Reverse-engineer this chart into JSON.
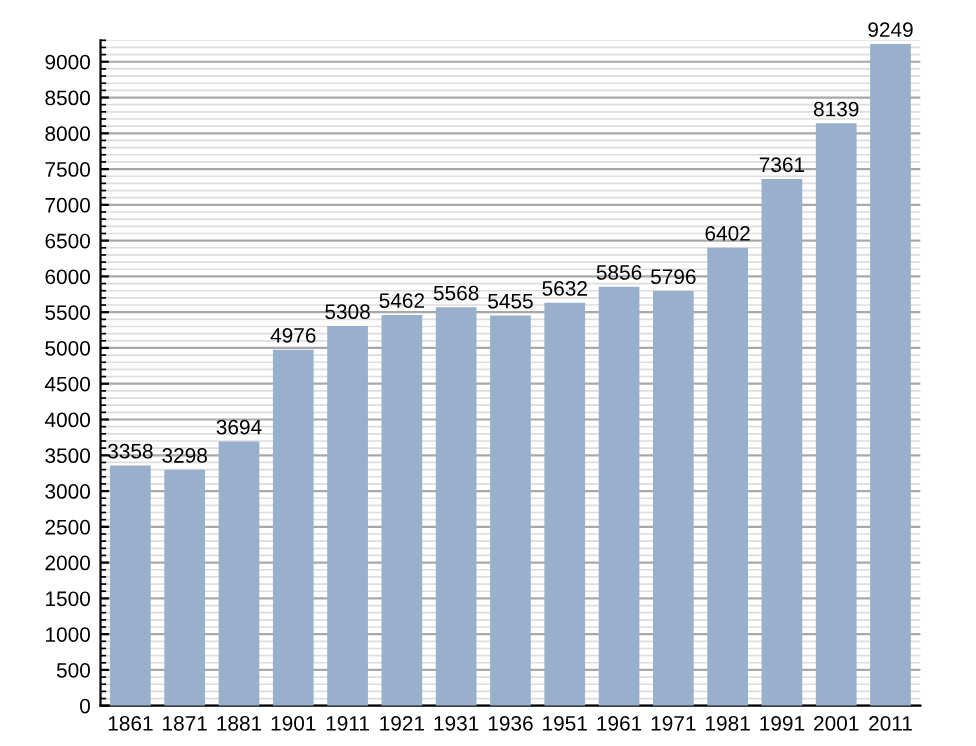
{
  "chart_data": {
    "type": "bar",
    "categories": [
      "1861",
      "1871",
      "1881",
      "1901",
      "1911",
      "1921",
      "1931",
      "1936",
      "1951",
      "1961",
      "1971",
      "1981",
      "1991",
      "2001",
      "2011"
    ],
    "values": [
      3358,
      3298,
      3694,
      4976,
      5308,
      5462,
      5568,
      5455,
      5632,
      5856,
      5796,
      6402,
      7361,
      8139,
      9249
    ],
    "color": "#98b0cc",
    "ylim": [
      0,
      9300
    ],
    "yticks": [
      0,
      500,
      1000,
      1500,
      2000,
      2500,
      3000,
      3500,
      4000,
      4500,
      5000,
      5500,
      6000,
      6500,
      7000,
      7500,
      8000,
      8500,
      9000
    ],
    "grid": "y",
    "data_labels": true
  }
}
